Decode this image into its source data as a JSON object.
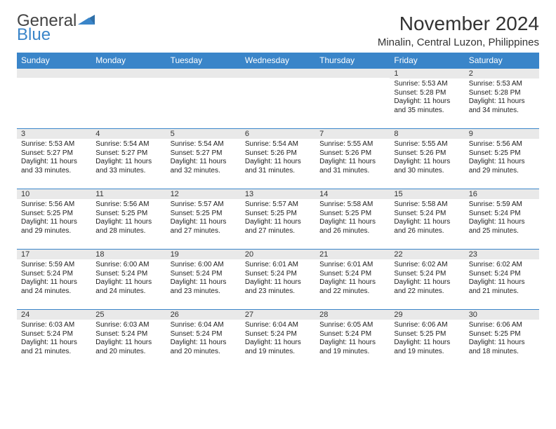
{
  "logo": {
    "text1": "General",
    "text2": "Blue",
    "color_accent": "#3a85c9",
    "color_text": "#444444"
  },
  "header": {
    "month_title": "November 2024",
    "location": "Minalin, Central Luzon, Philippines"
  },
  "colors": {
    "header_bg": "#3a85c9",
    "header_text": "#ffffff",
    "daynum_bg": "#e9e9e9",
    "row_divider": "#3a85c9",
    "body_text": "#222222",
    "page_bg": "#ffffff"
  },
  "typography": {
    "month_title_fontsize": 28,
    "location_fontsize": 15,
    "dayheader_fontsize": 12,
    "daynum_fontsize": 11,
    "cell_fontsize": 10
  },
  "day_headers": [
    "Sunday",
    "Monday",
    "Tuesday",
    "Wednesday",
    "Thursday",
    "Friday",
    "Saturday"
  ],
  "weeks": [
    [
      {
        "num": "",
        "lines": []
      },
      {
        "num": "",
        "lines": []
      },
      {
        "num": "",
        "lines": []
      },
      {
        "num": "",
        "lines": []
      },
      {
        "num": "",
        "lines": []
      },
      {
        "num": "1",
        "lines": [
          "Sunrise: 5:53 AM",
          "Sunset: 5:28 PM",
          "Daylight: 11 hours and 35 minutes."
        ]
      },
      {
        "num": "2",
        "lines": [
          "Sunrise: 5:53 AM",
          "Sunset: 5:28 PM",
          "Daylight: 11 hours and 34 minutes."
        ]
      }
    ],
    [
      {
        "num": "3",
        "lines": [
          "Sunrise: 5:53 AM",
          "Sunset: 5:27 PM",
          "Daylight: 11 hours and 33 minutes."
        ]
      },
      {
        "num": "4",
        "lines": [
          "Sunrise: 5:54 AM",
          "Sunset: 5:27 PM",
          "Daylight: 11 hours and 33 minutes."
        ]
      },
      {
        "num": "5",
        "lines": [
          "Sunrise: 5:54 AM",
          "Sunset: 5:27 PM",
          "Daylight: 11 hours and 32 minutes."
        ]
      },
      {
        "num": "6",
        "lines": [
          "Sunrise: 5:54 AM",
          "Sunset: 5:26 PM",
          "Daylight: 11 hours and 31 minutes."
        ]
      },
      {
        "num": "7",
        "lines": [
          "Sunrise: 5:55 AM",
          "Sunset: 5:26 PM",
          "Daylight: 11 hours and 31 minutes."
        ]
      },
      {
        "num": "8",
        "lines": [
          "Sunrise: 5:55 AM",
          "Sunset: 5:26 PM",
          "Daylight: 11 hours and 30 minutes."
        ]
      },
      {
        "num": "9",
        "lines": [
          "Sunrise: 5:56 AM",
          "Sunset: 5:25 PM",
          "Daylight: 11 hours and 29 minutes."
        ]
      }
    ],
    [
      {
        "num": "10",
        "lines": [
          "Sunrise: 5:56 AM",
          "Sunset: 5:25 PM",
          "Daylight: 11 hours and 29 minutes."
        ]
      },
      {
        "num": "11",
        "lines": [
          "Sunrise: 5:56 AM",
          "Sunset: 5:25 PM",
          "Daylight: 11 hours and 28 minutes."
        ]
      },
      {
        "num": "12",
        "lines": [
          "Sunrise: 5:57 AM",
          "Sunset: 5:25 PM",
          "Daylight: 11 hours and 27 minutes."
        ]
      },
      {
        "num": "13",
        "lines": [
          "Sunrise: 5:57 AM",
          "Sunset: 5:25 PM",
          "Daylight: 11 hours and 27 minutes."
        ]
      },
      {
        "num": "14",
        "lines": [
          "Sunrise: 5:58 AM",
          "Sunset: 5:25 PM",
          "Daylight: 11 hours and 26 minutes."
        ]
      },
      {
        "num": "15",
        "lines": [
          "Sunrise: 5:58 AM",
          "Sunset: 5:24 PM",
          "Daylight: 11 hours and 26 minutes."
        ]
      },
      {
        "num": "16",
        "lines": [
          "Sunrise: 5:59 AM",
          "Sunset: 5:24 PM",
          "Daylight: 11 hours and 25 minutes."
        ]
      }
    ],
    [
      {
        "num": "17",
        "lines": [
          "Sunrise: 5:59 AM",
          "Sunset: 5:24 PM",
          "Daylight: 11 hours and 24 minutes."
        ]
      },
      {
        "num": "18",
        "lines": [
          "Sunrise: 6:00 AM",
          "Sunset: 5:24 PM",
          "Daylight: 11 hours and 24 minutes."
        ]
      },
      {
        "num": "19",
        "lines": [
          "Sunrise: 6:00 AM",
          "Sunset: 5:24 PM",
          "Daylight: 11 hours and 23 minutes."
        ]
      },
      {
        "num": "20",
        "lines": [
          "Sunrise: 6:01 AM",
          "Sunset: 5:24 PM",
          "Daylight: 11 hours and 23 minutes."
        ]
      },
      {
        "num": "21",
        "lines": [
          "Sunrise: 6:01 AM",
          "Sunset: 5:24 PM",
          "Daylight: 11 hours and 22 minutes."
        ]
      },
      {
        "num": "22",
        "lines": [
          "Sunrise: 6:02 AM",
          "Sunset: 5:24 PM",
          "Daylight: 11 hours and 22 minutes."
        ]
      },
      {
        "num": "23",
        "lines": [
          "Sunrise: 6:02 AM",
          "Sunset: 5:24 PM",
          "Daylight: 11 hours and 21 minutes."
        ]
      }
    ],
    [
      {
        "num": "24",
        "lines": [
          "Sunrise: 6:03 AM",
          "Sunset: 5:24 PM",
          "Daylight: 11 hours and 21 minutes."
        ]
      },
      {
        "num": "25",
        "lines": [
          "Sunrise: 6:03 AM",
          "Sunset: 5:24 PM",
          "Daylight: 11 hours and 20 minutes."
        ]
      },
      {
        "num": "26",
        "lines": [
          "Sunrise: 6:04 AM",
          "Sunset: 5:24 PM",
          "Daylight: 11 hours and 20 minutes."
        ]
      },
      {
        "num": "27",
        "lines": [
          "Sunrise: 6:04 AM",
          "Sunset: 5:24 PM",
          "Daylight: 11 hours and 19 minutes."
        ]
      },
      {
        "num": "28",
        "lines": [
          "Sunrise: 6:05 AM",
          "Sunset: 5:24 PM",
          "Daylight: 11 hours and 19 minutes."
        ]
      },
      {
        "num": "29",
        "lines": [
          "Sunrise: 6:06 AM",
          "Sunset: 5:25 PM",
          "Daylight: 11 hours and 19 minutes."
        ]
      },
      {
        "num": "30",
        "lines": [
          "Sunrise: 6:06 AM",
          "Sunset: 5:25 PM",
          "Daylight: 11 hours and 18 minutes."
        ]
      }
    ]
  ]
}
